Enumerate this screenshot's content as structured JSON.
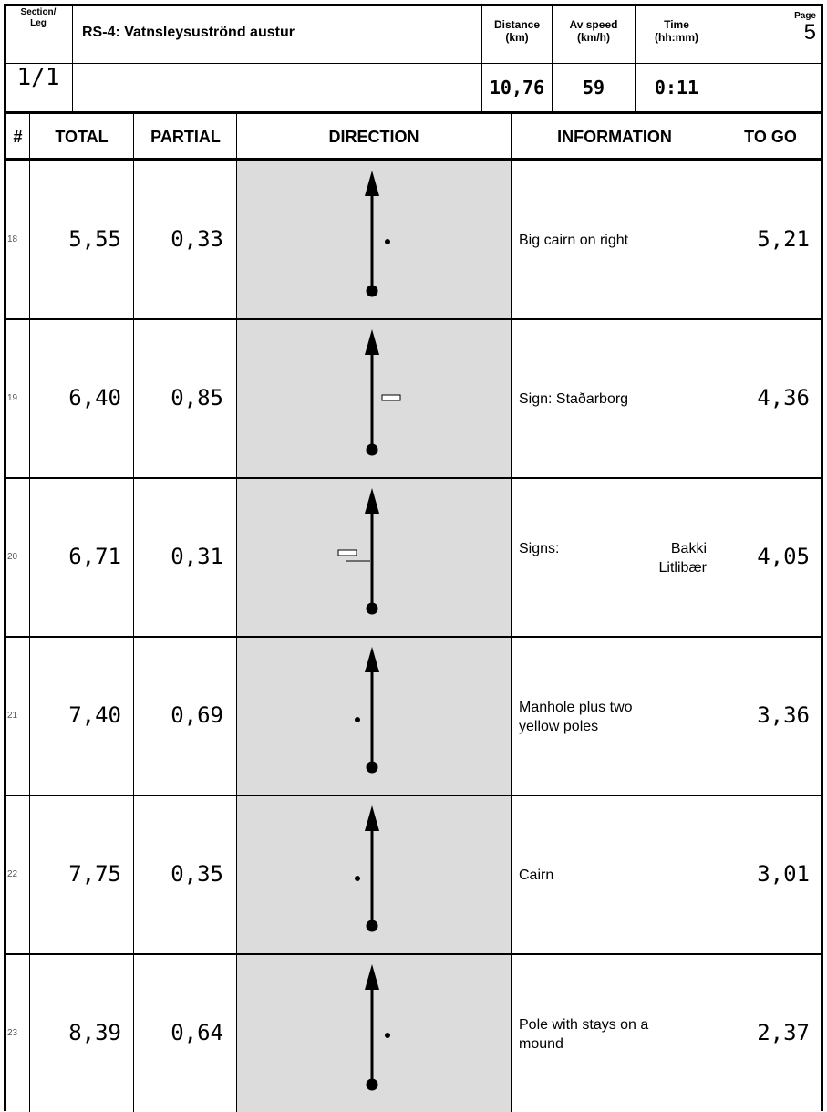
{
  "header": {
    "section_label": "Section/\nLeg",
    "section_value": "1/1",
    "title": "RS-4:  Vatnsleysuströnd austur",
    "distance_label": "Distance\n(km)",
    "distance_value": "10,76",
    "speed_label": "Av speed\n(km/h)",
    "speed_value": "59",
    "time_label": "Time\n(hh:mm)",
    "time_value": "0:11",
    "page_label": "Page",
    "page_value": "5"
  },
  "columns": {
    "num": "#",
    "total": "TOTAL",
    "partial": "PARTIAL",
    "direction": "DIRECTION",
    "information": "INFORMATION",
    "togo": "TO GO"
  },
  "rows": [
    {
      "num": "18",
      "total": "5,55",
      "partial": "0,33",
      "info": "Big cairn on right",
      "info2": "",
      "togo": "5,21",
      "marker": "dot-right"
    },
    {
      "num": "19",
      "total": "6,40",
      "partial": "0,85",
      "info": "Sign: Staðarborg",
      "info2": "",
      "togo": "4,36",
      "marker": "sign-right"
    },
    {
      "num": "20",
      "total": "6,71",
      "partial": "0,31",
      "info": "Signs:",
      "info2": "Bakki\nLitlibær",
      "togo": "4,05",
      "marker": "sign-left"
    },
    {
      "num": "21",
      "total": "7,40",
      "partial": "0,69",
      "info": "Manhole plus two\nyellow poles",
      "info2": "",
      "togo": "3,36",
      "marker": "dot-left"
    },
    {
      "num": "22",
      "total": "7,75",
      "partial": "0,35",
      "info": "Cairn",
      "info2": "",
      "togo": "3,01",
      "marker": "dot-left"
    },
    {
      "num": "23",
      "total": "8,39",
      "partial": "0,64",
      "info": "Pole with stays on a\nmound",
      "info2": "",
      "togo": "2,37",
      "marker": "dot-right"
    }
  ]
}
